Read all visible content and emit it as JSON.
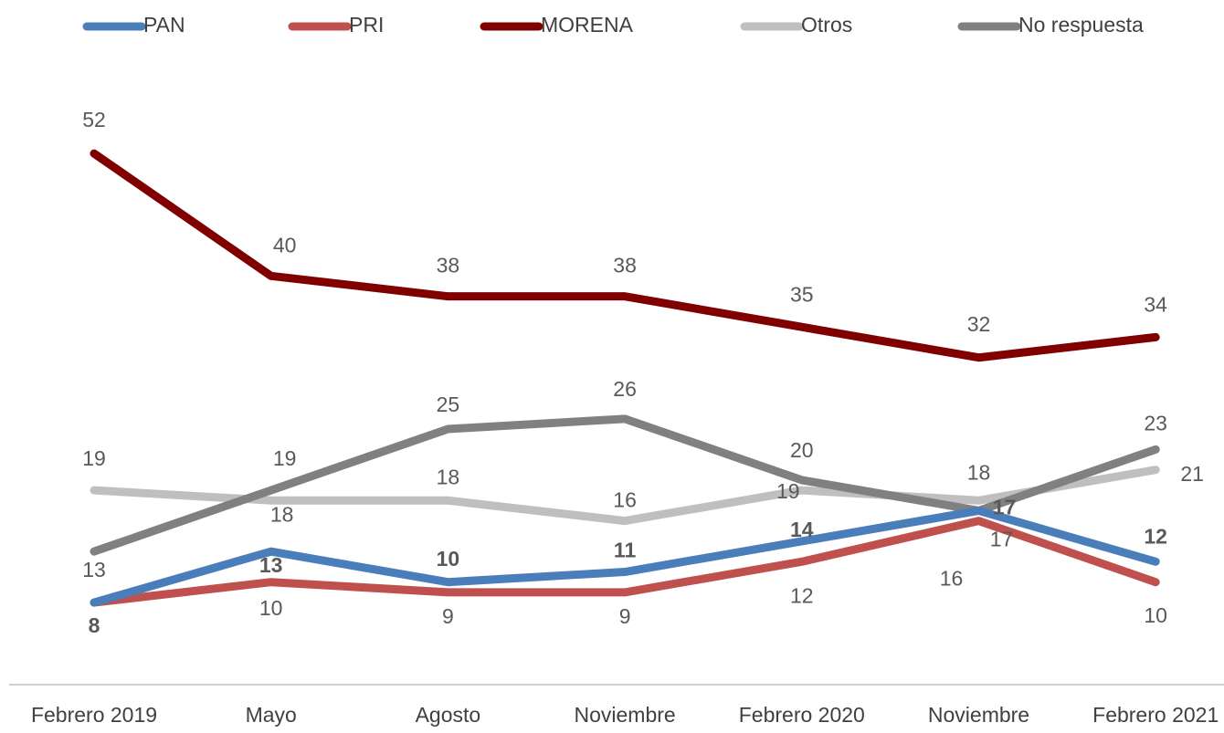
{
  "chart_data": {
    "type": "line",
    "categories": [
      "Febrero 2019",
      "Mayo",
      "Agosto",
      "Noviembre",
      "Febrero 2020",
      "Noviembre",
      "Febrero 2021"
    ],
    "series": [
      {
        "name": "PAN",
        "color": "#4a7ebb",
        "values": [
          8,
          13,
          10,
          11,
          14,
          17,
          12
        ]
      },
      {
        "name": "PRI",
        "color": "#c0504d",
        "values": [
          8,
          10,
          9,
          9,
          12,
          16,
          10
        ]
      },
      {
        "name": "MORENA",
        "color": "#800000",
        "values": [
          52,
          40,
          38,
          38,
          35,
          32,
          34
        ]
      },
      {
        "name": "Otros",
        "color": "#bfbfbf",
        "values": [
          19,
          18,
          18,
          16,
          19,
          18,
          21
        ]
      },
      {
        "name": "No respuesta",
        "color": "#808080",
        "values": [
          13,
          19,
          25,
          26,
          20,
          17,
          23
        ]
      }
    ],
    "ylim": [
      0,
      60
    ],
    "legend": "top"
  }
}
